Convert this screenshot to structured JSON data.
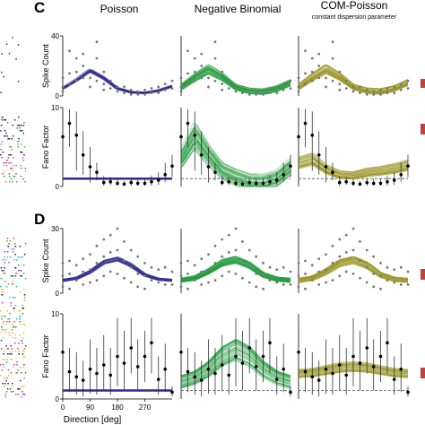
{
  "panel_labels": {
    "C": "C",
    "D": "D"
  },
  "model_titles": [
    "Poisson",
    "Negative Binomial",
    "COM-Poisson"
  ],
  "model_subtitle": "constant dispersion parameter",
  "model_colors": [
    "#2e2a8c",
    "#1f9a3a",
    "#9a9626"
  ],
  "chart_data": [
    {
      "panel": "C",
      "type": "line",
      "ylabel": "Spike Count",
      "ylim": [
        0,
        40
      ],
      "yticks": [
        0,
        40
      ],
      "xlim": [
        0,
        360
      ],
      "x": [
        0,
        45,
        90,
        135,
        180,
        225,
        270,
        315,
        360
      ],
      "curves": [
        {
          "model": "Poisson",
          "mean": [
            5,
            10.5,
            17,
            12,
            5,
            2.5,
            2,
            3.5,
            6.5
          ],
          "spread": 1.2,
          "n_lines": 40
        },
        {
          "model": "Negative Binomial",
          "mean": [
            6,
            12.5,
            18,
            13,
            6,
            3.5,
            3,
            5,
            9
          ],
          "spread": 3.5,
          "n_lines": 60
        },
        {
          "model": "COM-Poisson",
          "mean": [
            6,
            12.5,
            18,
            13,
            6,
            3.5,
            3,
            5,
            9
          ],
          "spread": 3.5,
          "n_lines": 60
        }
      ],
      "points": [
        [
          0,
          12
        ],
        [
          0,
          6
        ],
        [
          0,
          3
        ],
        [
          22,
          30
        ],
        [
          22,
          15
        ],
        [
          22,
          8
        ],
        [
          45,
          25
        ],
        [
          45,
          16
        ],
        [
          45,
          10
        ],
        [
          67,
          28
        ],
        [
          67,
          20
        ],
        [
          67,
          12
        ],
        [
          90,
          12
        ],
        [
          90,
          6
        ],
        [
          112,
          36
        ],
        [
          112,
          25
        ],
        [
          112,
          10
        ],
        [
          135,
          16
        ],
        [
          135,
          8
        ],
        [
          135,
          4
        ],
        [
          157,
          10
        ],
        [
          157,
          5
        ],
        [
          180,
          6
        ],
        [
          180,
          3
        ],
        [
          202,
          6
        ],
        [
          202,
          2
        ],
        [
          225,
          4
        ],
        [
          225,
          1
        ],
        [
          247,
          3
        ],
        [
          247,
          1
        ],
        [
          270,
          4
        ],
        [
          270,
          1
        ],
        [
          292,
          5
        ],
        [
          292,
          2
        ],
        [
          315,
          6
        ],
        [
          315,
          2
        ],
        [
          337,
          8
        ],
        [
          337,
          4
        ],
        [
          360,
          10
        ],
        [
          360,
          5
        ]
      ]
    },
    {
      "panel": "C",
      "type": "line",
      "ylabel": "Fano Factor",
      "ylim": [
        0,
        10
      ],
      "yticks": [
        0,
        10
      ],
      "reference": 1,
      "xlim": [
        0,
        360
      ],
      "x": [
        0,
        45,
        90,
        135,
        180,
        225,
        270,
        315,
        360
      ],
      "curves": [
        {
          "model": "Poisson",
          "mean": [
            1,
            1,
            1,
            1,
            1,
            1,
            1,
            1,
            1
          ],
          "spread": 0,
          "n_lines": 1
        },
        {
          "model": "Negative Binomial",
          "mean": [
            3.5,
            6.5,
            4,
            2,
            1.2,
            0.6,
            0.5,
            1,
            2.5
          ],
          "spread": 1.8,
          "n_lines": 60
        },
        {
          "model": "COM-Poisson",
          "mean": [
            3,
            3.5,
            2.2,
            1.5,
            1.4,
            1.8,
            2,
            2.3,
            2.7
          ],
          "spread": 0.8,
          "n_lines": 60
        }
      ],
      "points": [
        {
          "x": 0,
          "y": 6.3,
          "lo": 3,
          "hi": 9.5
        },
        {
          "x": 22,
          "y": 8,
          "lo": 5,
          "hi": 9.8
        },
        {
          "x": 45,
          "y": 6.5,
          "lo": 2,
          "hi": 9.5
        },
        {
          "x": 67,
          "y": 4,
          "lo": 1.5,
          "hi": 7
        },
        {
          "x": 90,
          "y": 2.5,
          "lo": 0.5,
          "hi": 5
        },
        {
          "x": 112,
          "y": 1.8,
          "lo": 0.8,
          "hi": 3
        },
        {
          "x": 135,
          "y": 0.5,
          "lo": 0.1,
          "hi": 1.3
        },
        {
          "x": 157,
          "y": 0.6,
          "lo": 0.2,
          "hi": 1.2
        },
        {
          "x": 180,
          "y": 0.4,
          "lo": 0.1,
          "hi": 0.9
        },
        {
          "x": 202,
          "y": 0.3,
          "lo": 0.1,
          "hi": 0.7
        },
        {
          "x": 225,
          "y": 0.5,
          "lo": 0.1,
          "hi": 1
        },
        {
          "x": 247,
          "y": 0.4,
          "lo": 0.1,
          "hi": 1
        },
        {
          "x": 270,
          "y": 0.4,
          "lo": 0.1,
          "hi": 1
        },
        {
          "x": 292,
          "y": 0.6,
          "lo": 0.1,
          "hi": 1.4
        },
        {
          "x": 315,
          "y": 0.8,
          "lo": 0.2,
          "hi": 1.8
        },
        {
          "x": 337,
          "y": 1.5,
          "lo": 0.6,
          "hi": 3
        },
        {
          "x": 360,
          "y": 2.6,
          "lo": 1.2,
          "hi": 4
        }
      ]
    },
    {
      "panel": "D",
      "type": "line",
      "ylabel": "Spike Count",
      "ylim": [
        0,
        30
      ],
      "yticks": [
        0,
        30
      ],
      "xlim": [
        0,
        360
      ],
      "x": [
        0,
        45,
        90,
        135,
        180,
        225,
        270,
        315,
        360
      ],
      "curves": [
        {
          "model": "Poisson",
          "mean": [
            6,
            7,
            10,
            14.5,
            16,
            13,
            8.5,
            6.5,
            6
          ],
          "spread": 1,
          "n_lines": 40
        },
        {
          "model": "Negative Binomial",
          "mean": [
            6,
            7,
            10,
            14,
            15.5,
            13,
            8.5,
            6.5,
            6
          ],
          "spread": 1.8,
          "n_lines": 60
        },
        {
          "model": "COM-Poisson",
          "mean": [
            6,
            7,
            10,
            14,
            15.5,
            13,
            8.5,
            6.5,
            6
          ],
          "spread": 1.8,
          "n_lines": 60
        }
      ],
      "points": [
        [
          0,
          14
        ],
        [
          0,
          8
        ],
        [
          0,
          3
        ],
        [
          22,
          15
        ],
        [
          22,
          9
        ],
        [
          22,
          2
        ],
        [
          45,
          13
        ],
        [
          45,
          6
        ],
        [
          67,
          16
        ],
        [
          67,
          10
        ],
        [
          67,
          4
        ],
        [
          90,
          18
        ],
        [
          90,
          11
        ],
        [
          90,
          5
        ],
        [
          112,
          22
        ],
        [
          112,
          14
        ],
        [
          112,
          6
        ],
        [
          135,
          25
        ],
        [
          135,
          17
        ],
        [
          135,
          8
        ],
        [
          157,
          27
        ],
        [
          157,
          19
        ],
        [
          157,
          10
        ],
        [
          180,
          32
        ],
        [
          180,
          20
        ],
        [
          180,
          9
        ],
        [
          202,
          24
        ],
        [
          202,
          15
        ],
        [
          202,
          7
        ],
        [
          225,
          20
        ],
        [
          225,
          12
        ],
        [
          225,
          5
        ],
        [
          247,
          17
        ],
        [
          247,
          9
        ],
        [
          247,
          3
        ],
        [
          270,
          14
        ],
        [
          270,
          8
        ],
        [
          270,
          2
        ],
        [
          292,
          12
        ],
        [
          292,
          6
        ],
        [
          315,
          11
        ],
        [
          315,
          5
        ],
        [
          337,
          12
        ],
        [
          337,
          4
        ],
        [
          360,
          10
        ],
        [
          360,
          4
        ]
      ]
    },
    {
      "panel": "D",
      "type": "line",
      "ylabel": "Fano Factor",
      "ylim": [
        0,
        10
      ],
      "yticks": [
        0,
        10
      ],
      "reference": 1,
      "xlim": [
        0,
        360
      ],
      "x": [
        0,
        45,
        90,
        135,
        180,
        225,
        270,
        315,
        360
      ],
      "xticks": [
        0,
        90,
        180,
        270
      ],
      "xticklabels": [
        "0",
        "90",
        "180",
        "270"
      ],
      "xlabel": "Direction [deg]",
      "curves": [
        {
          "model": "Poisson",
          "mean": [
            1,
            1,
            1,
            1,
            1,
            1,
            1,
            1,
            1
          ],
          "spread": 0,
          "n_lines": 1
        },
        {
          "model": "Negative Binomial",
          "mean": [
            2,
            2.5,
            3.5,
            5,
            5.8,
            5,
            3.5,
            2.5,
            2
          ],
          "spread": 1.3,
          "n_lines": 60
        },
        {
          "model": "COM-Poisson",
          "mean": [
            3,
            3.1,
            3.4,
            3.7,
            3.8,
            3.7,
            3.4,
            3.1,
            3
          ],
          "spread": 0.6,
          "n_lines": 60
        }
      ],
      "points": [
        {
          "x": 0,
          "y": 5.5,
          "lo": 2.5,
          "hi": 8.5
        },
        {
          "x": 22,
          "y": 3.2,
          "lo": 0.8,
          "hi": 6
        },
        {
          "x": 45,
          "y": 2.6,
          "lo": 0.5,
          "hi": 5.5
        },
        {
          "x": 67,
          "y": 2.2,
          "lo": 0.3,
          "hi": 4.5
        },
        {
          "x": 90,
          "y": 3.5,
          "lo": 0.6,
          "hi": 7
        },
        {
          "x": 112,
          "y": 3,
          "lo": 0.5,
          "hi": 6
        },
        {
          "x": 135,
          "y": 4,
          "lo": 1,
          "hi": 7.5
        },
        {
          "x": 157,
          "y": 2.8,
          "lo": 0.5,
          "hi": 6
        },
        {
          "x": 180,
          "y": 5,
          "lo": 1.5,
          "hi": 9.5
        },
        {
          "x": 202,
          "y": 4.2,
          "lo": 1,
          "hi": 8
        },
        {
          "x": 225,
          "y": 6,
          "lo": 3,
          "hi": 9.5
        },
        {
          "x": 247,
          "y": 3.8,
          "lo": 1,
          "hi": 7
        },
        {
          "x": 270,
          "y": 5,
          "lo": 2,
          "hi": 8
        },
        {
          "x": 292,
          "y": 6.6,
          "lo": 3,
          "hi": 9.5
        },
        {
          "x": 315,
          "y": 2.3,
          "lo": 0.5,
          "hi": 5
        },
        {
          "x": 337,
          "y": 3.5,
          "lo": 0.8,
          "hi": 6.5
        },
        {
          "x": 360,
          "y": 0.8,
          "lo": 0.3,
          "hi": 1.5
        }
      ]
    }
  ]
}
